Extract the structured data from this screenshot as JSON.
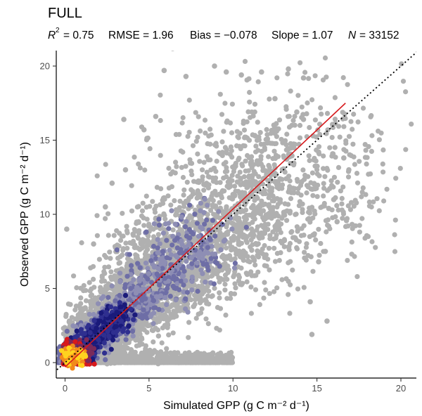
{
  "chart_data": {
    "type": "scatter",
    "title": "FULL",
    "stats": {
      "r2_label": "R",
      "r2_value": "= 0.75",
      "rmse": "RMSE = 1.96",
      "bias": "Bias = −0.078",
      "slope": "Slope = 1.07",
      "n_label": "N",
      "n_value": "= 33152"
    },
    "xlabel": "Simulated GPP (g C m⁻² d⁻¹)",
    "ylabel": "Observed GPP (g C m⁻² d⁻¹)",
    "xlim": [
      -0.8,
      21
    ],
    "ylim": [
      -1,
      21
    ],
    "x_ticks": [
      0,
      5,
      10,
      15,
      20
    ],
    "y_ticks": [
      0,
      5,
      10,
      15,
      20
    ],
    "grid": false,
    "identity_line": {
      "style": "dotted",
      "color": "#000000",
      "from": [
        -1,
        -1
      ],
      "to": [
        21,
        21
      ]
    },
    "regression_line": {
      "color": "#d7191c",
      "from": [
        0,
        -0.3
      ],
      "to": [
        16.7,
        17.5
      ]
    },
    "density_colors": [
      "#b0b0b0",
      "#8e8eb4",
      "#6e6ea6",
      "#2f2f8f",
      "#1a1a7a",
      "#7a2a5a",
      "#d7191c",
      "#f28a1c",
      "#ffd21f"
    ],
    "point_color": "#b0b0b0",
    "outlier_points": [
      [
        5.9,
        19.7
      ],
      [
        8.9,
        20.0
      ],
      [
        7.2,
        19.3
      ],
      [
        10.5,
        19.4
      ],
      [
        11.7,
        19.6
      ],
      [
        13.3,
        19.8
      ],
      [
        9.6,
        19.6
      ],
      [
        14.2,
        19.2
      ],
      [
        3.5,
        16.4
      ],
      [
        14.2,
        16.4
      ],
      [
        15.1,
        14.2
      ],
      [
        16.6,
        13.8
      ],
      [
        16.9,
        13.0
      ],
      [
        3.6,
        13.0
      ],
      [
        2.8,
        12.1
      ],
      [
        0.1,
        9.0
      ],
      [
        16.2,
        9.5
      ],
      [
        15.5,
        7.5
      ],
      [
        15.1,
        6.8
      ],
      [
        14.6,
        4.1
      ],
      [
        15.6,
        2.8
      ],
      [
        14.7,
        1.9
      ],
      [
        4.7,
        15.7
      ],
      [
        5.4,
        16.6
      ],
      [
        12.5,
        17.8
      ],
      [
        16.0,
        11.0
      ],
      [
        1.7,
        8.0
      ],
      [
        2.4,
        10.5
      ],
      [
        13.8,
        16.9
      ],
      [
        15.7,
        10.4
      ]
    ]
  }
}
